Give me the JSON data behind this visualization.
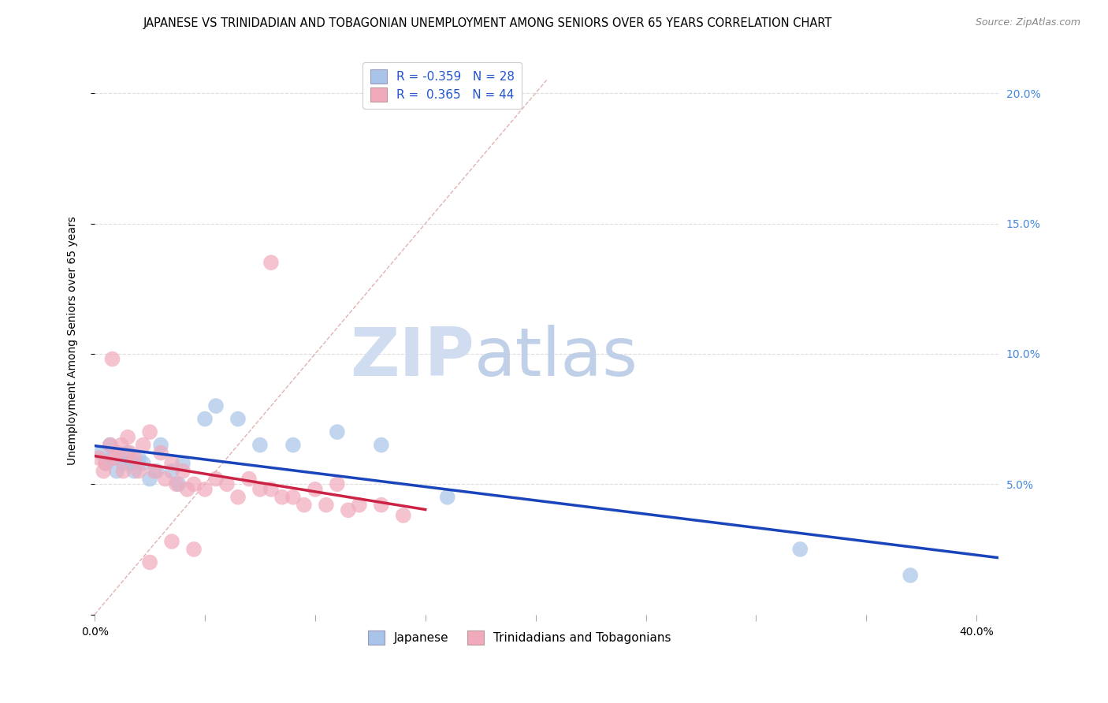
{
  "title": "JAPANESE VS TRINIDADIAN AND TOBAGONIAN UNEMPLOYMENT AMONG SENIORS OVER 65 YEARS CORRELATION CHART",
  "source": "Source: ZipAtlas.com",
  "ylabel": "Unemployment Among Seniors over 65 years",
  "xlim": [
    0.0,
    0.41
  ],
  "ylim": [
    0.0,
    0.21
  ],
  "background_color": "#ffffff",
  "blue_color": "#a8c4e8",
  "pink_color": "#f0aabb",
  "blue_line_color": "#1a44bb",
  "pink_line_color": "#cc2244",
  "diag_line_color": "#ddaaaa",
  "grid_color": "#dddddd",
  "watermark_zip_color": "#d0dcf0",
  "watermark_atlas_color": "#c0d0e8",
  "right_tick_color": "#4488dd",
  "title_fontsize": 10.5,
  "tick_fontsize": 10,
  "legend_fontsize": 11,
  "legend_label1": "Japanese",
  "legend_label2": "Trinidadians and Tobagonians",
  "japanese_x": [
    0.003,
    0.005,
    0.007,
    0.008,
    0.01,
    0.012,
    0.013,
    0.015,
    0.017,
    0.018,
    0.02,
    0.022,
    0.025,
    0.028,
    0.03,
    0.035,
    0.038,
    0.04,
    0.05,
    0.055,
    0.065,
    0.075,
    0.09,
    0.11,
    0.13,
    0.16,
    0.32,
    0.37
  ],
  "japanese_y": [
    0.062,
    0.058,
    0.065,
    0.06,
    0.055,
    0.06,
    0.058,
    0.062,
    0.058,
    0.055,
    0.06,
    0.058,
    0.052,
    0.055,
    0.065,
    0.055,
    0.05,
    0.058,
    0.075,
    0.08,
    0.075,
    0.065,
    0.065,
    0.07,
    0.065,
    0.045,
    0.025,
    0.015
  ],
  "trinidadian_x": [
    0.002,
    0.004,
    0.005,
    0.007,
    0.008,
    0.009,
    0.01,
    0.012,
    0.013,
    0.015,
    0.016,
    0.018,
    0.02,
    0.022,
    0.025,
    0.027,
    0.03,
    0.032,
    0.035,
    0.037,
    0.04,
    0.042,
    0.045,
    0.05,
    0.055,
    0.06,
    0.065,
    0.07,
    0.075,
    0.08,
    0.085,
    0.09,
    0.095,
    0.1,
    0.105,
    0.11,
    0.115,
    0.12,
    0.13,
    0.14,
    0.035,
    0.045,
    0.025,
    0.08
  ],
  "trinidadian_y": [
    0.06,
    0.055,
    0.058,
    0.065,
    0.098,
    0.06,
    0.062,
    0.065,
    0.055,
    0.068,
    0.062,
    0.06,
    0.055,
    0.065,
    0.07,
    0.055,
    0.062,
    0.052,
    0.058,
    0.05,
    0.055,
    0.048,
    0.05,
    0.048,
    0.052,
    0.05,
    0.045,
    0.052,
    0.048,
    0.048,
    0.045,
    0.045,
    0.042,
    0.048,
    0.042,
    0.05,
    0.04,
    0.042,
    0.042,
    0.038,
    0.028,
    0.025,
    0.02,
    0.135
  ],
  "pink_line_start_x": 0.0,
  "pink_line_end_x": 0.15,
  "diag_line_end": 0.205
}
